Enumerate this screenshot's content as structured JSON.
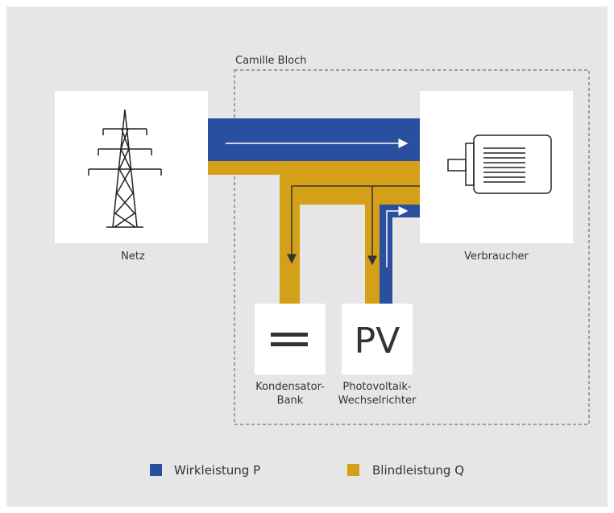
{
  "group_label": "Camille Bloch",
  "nodes": [
    {
      "label": [
        "Netz"
      ]
    },
    {
      "label": [
        "Verbraucher"
      ]
    },
    {
      "label": [
        "Kondensator-",
        "Bank"
      ]
    },
    {
      "label": [
        "Photovoltaik-",
        "Wechselrichter"
      ],
      "icon_text": "PV"
    }
  ],
  "legend": [
    {
      "name": "Wirkleistung P",
      "color": "#2b4fa0"
    },
    {
      "name": "Blindleistung Q",
      "color": "#d4a017"
    }
  ]
}
